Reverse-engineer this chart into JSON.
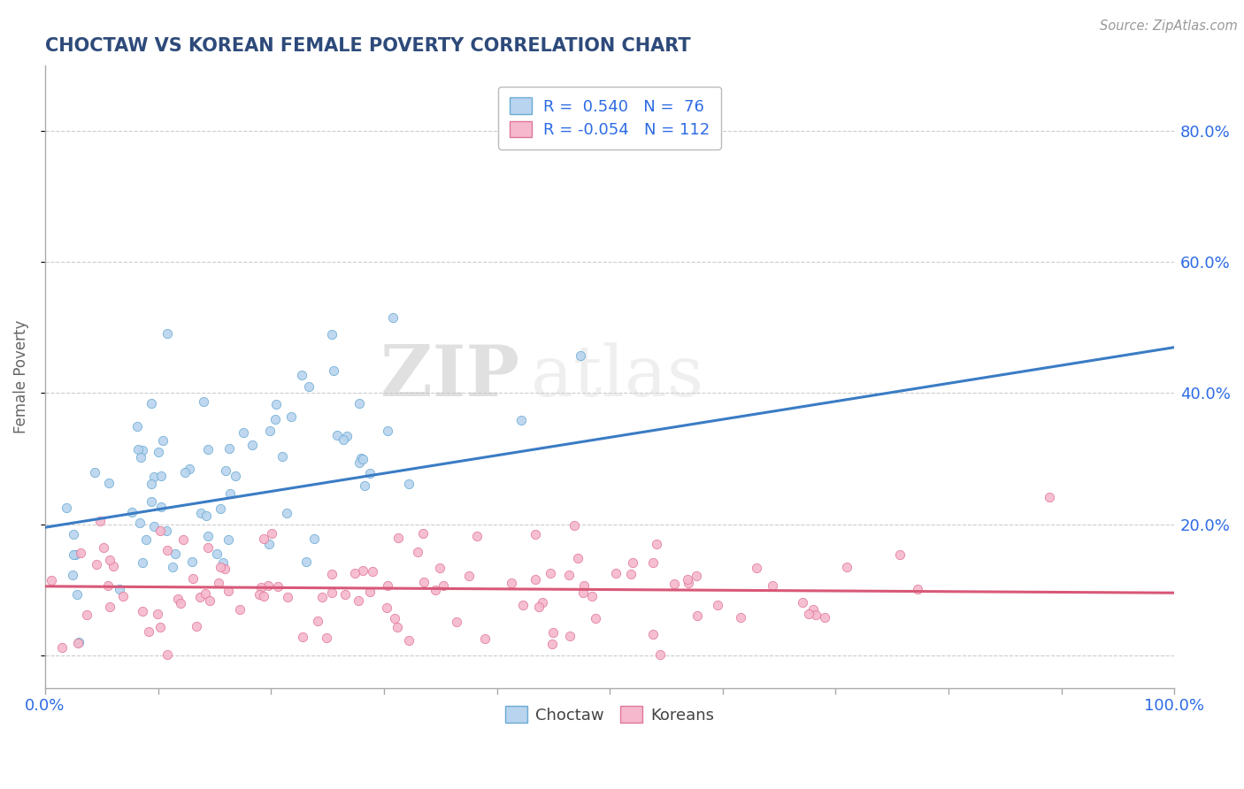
{
  "title": "CHOCTAW VS KOREAN FEMALE POVERTY CORRELATION CHART",
  "source_text": "Source: ZipAtlas.com",
  "ylabel": "Female Poverty",
  "watermark_zip": "ZIP",
  "watermark_atlas": "atlas",
  "xlim": [
    0.0,
    1.0
  ],
  "ylim": [
    -0.05,
    0.9
  ],
  "yticks": [
    0.0,
    0.2,
    0.4,
    0.6,
    0.8
  ],
  "ytick_labels": [
    "",
    "20.0%",
    "40.0%",
    "60.0%",
    "80.0%"
  ],
  "xticks": [
    0.0,
    0.1,
    0.2,
    0.3,
    0.4,
    0.5,
    0.6,
    0.7,
    0.8,
    0.9,
    1.0
  ],
  "choctaw_color": "#b8d4ee",
  "choctaw_edge": "#6aaad4",
  "korean_color": "#f5b8cc",
  "korean_edge": "#e07898",
  "choctaw_line_color": "#3a7cc4",
  "korean_line_color": "#d85878",
  "legend_label_c": "R =  0.540   N =  76",
  "legend_label_k": "R = -0.054   N = 112",
  "choctaw_label": "Choctaw",
  "korean_label": "Koreans",
  "title_color": "#2d4a7a",
  "axis_color": "#aaaaaa",
  "grid_color": "#cccccc",
  "n_choctaw": 76,
  "n_korean": 112,
  "background_color": "#ffffff",
  "legend_text_color": "#2d6be4",
  "source_color": "#999999"
}
